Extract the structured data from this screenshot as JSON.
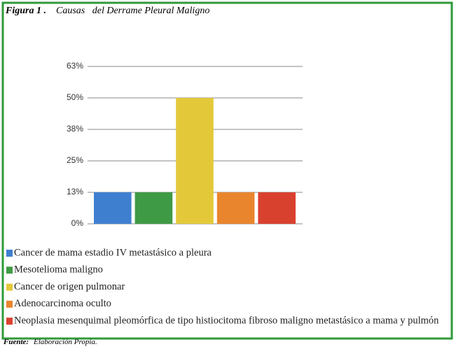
{
  "chart_data": {
    "type": "bar",
    "figure_label": "Figura 1 .",
    "title": "Causas   del Derrame Pleural Maligno",
    "categories": [
      null
    ],
    "series": [
      {
        "name": "Cancer de mama estadio IV metastásico a pleura",
        "color": "#3f7fd0",
        "values": [
          12.5
        ]
      },
      {
        "name": "Mesotelioma maligno",
        "color": "#3f9a45",
        "values": [
          12.5
        ]
      },
      {
        "name": "Cancer de origen pulmonar",
        "color": "#e3c93a",
        "values": [
          50
        ]
      },
      {
        "name": "Adenocarcinoma oculto",
        "color": "#e9852d",
        "values": [
          12.5
        ]
      },
      {
        "name": "Neoplasia mesenquimal pleomórfica de tipo histiocitoma fibroso maligno metastásico a mama y pulmón",
        "color": "#d9412f",
        "values": [
          12.5
        ]
      }
    ],
    "ylim": [
      0,
      62.5
    ],
    "yticks": [
      {
        "value": 0,
        "label": "0%"
      },
      {
        "value": 12.5,
        "label": "13%"
      },
      {
        "value": 25,
        "label": "25%"
      },
      {
        "value": 37.5,
        "label": "38%"
      },
      {
        "value": 50,
        "label": "50%"
      },
      {
        "value": 62.5,
        "label": "63%"
      }
    ],
    "grid": true,
    "legend": "bottom-left",
    "source_label": "Fuente:",
    "source": "Elaboración Propia."
  }
}
